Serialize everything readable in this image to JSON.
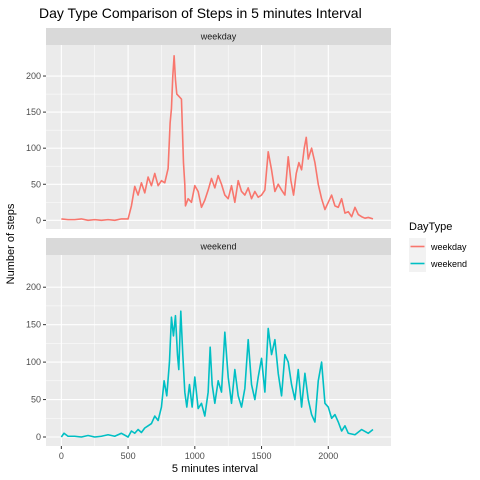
{
  "chart_data": {
    "type": "line",
    "title": "Day Type Comparison of Steps in 5 minutes Interval",
    "xlabel": "5 minutes interval",
    "ylabel": "Number of steps",
    "xlim": [
      -115,
      2470
    ],
    "ylim": [
      -12,
      243
    ],
    "x_ticks": [
      0,
      500,
      1000,
      1500,
      2000
    ],
    "y_ticks": [
      0,
      50,
      100,
      150,
      200
    ],
    "grid": true,
    "legend": {
      "title": "DayType",
      "position": "right"
    },
    "panels": [
      {
        "label": "weekday",
        "series": "weekday",
        "color": "#F8766D",
        "points": [
          [
            0,
            2
          ],
          [
            50,
            1
          ],
          [
            100,
            1
          ],
          [
            150,
            2
          ],
          [
            200,
            0
          ],
          [
            250,
            1
          ],
          [
            300,
            0
          ],
          [
            350,
            1
          ],
          [
            400,
            0
          ],
          [
            450,
            2
          ],
          [
            500,
            2
          ],
          [
            525,
            20
          ],
          [
            550,
            47
          ],
          [
            575,
            35
          ],
          [
            600,
            52
          ],
          [
            625,
            38
          ],
          [
            650,
            60
          ],
          [
            675,
            48
          ],
          [
            700,
            65
          ],
          [
            725,
            48
          ],
          [
            750,
            55
          ],
          [
            775,
            52
          ],
          [
            800,
            72
          ],
          [
            815,
            135
          ],
          [
            825,
            155
          ],
          [
            835,
            200
          ],
          [
            845,
            228
          ],
          [
            855,
            195
          ],
          [
            865,
            175
          ],
          [
            880,
            172
          ],
          [
            900,
            168
          ],
          [
            915,
            80
          ],
          [
            925,
            50
          ],
          [
            930,
            20
          ],
          [
            950,
            30
          ],
          [
            975,
            25
          ],
          [
            1000,
            48
          ],
          [
            1025,
            40
          ],
          [
            1050,
            18
          ],
          [
            1075,
            28
          ],
          [
            1100,
            42
          ],
          [
            1125,
            58
          ],
          [
            1150,
            45
          ],
          [
            1175,
            62
          ],
          [
            1200,
            50
          ],
          [
            1225,
            35
          ],
          [
            1250,
            30
          ],
          [
            1275,
            48
          ],
          [
            1300,
            25
          ],
          [
            1325,
            55
          ],
          [
            1350,
            40
          ],
          [
            1375,
            35
          ],
          [
            1400,
            45
          ],
          [
            1425,
            30
          ],
          [
            1450,
            40
          ],
          [
            1475,
            32
          ],
          [
            1500,
            35
          ],
          [
            1525,
            42
          ],
          [
            1550,
            95
          ],
          [
            1575,
            70
          ],
          [
            1600,
            40
          ],
          [
            1625,
            50
          ],
          [
            1650,
            42
          ],
          [
            1675,
            35
          ],
          [
            1700,
            88
          ],
          [
            1720,
            55
          ],
          [
            1740,
            35
          ],
          [
            1760,
            65
          ],
          [
            1780,
            80
          ],
          [
            1800,
            70
          ],
          [
            1820,
            100
          ],
          [
            1835,
            115
          ],
          [
            1850,
            85
          ],
          [
            1875,
            100
          ],
          [
            1900,
            80
          ],
          [
            1925,
            50
          ],
          [
            1950,
            30
          ],
          [
            1975,
            15
          ],
          [
            2000,
            25
          ],
          [
            2025,
            35
          ],
          [
            2050,
            20
          ],
          [
            2075,
            18
          ],
          [
            2100,
            30
          ],
          [
            2125,
            10
          ],
          [
            2150,
            12
          ],
          [
            2175,
            5
          ],
          [
            2200,
            18
          ],
          [
            2225,
            8
          ],
          [
            2250,
            5
          ],
          [
            2275,
            3
          ],
          [
            2300,
            4
          ],
          [
            2335,
            2
          ]
        ]
      },
      {
        "label": "weekend",
        "series": "weekend",
        "color": "#00BFC4",
        "points": [
          [
            0,
            0
          ],
          [
            20,
            5
          ],
          [
            50,
            1
          ],
          [
            100,
            1
          ],
          [
            150,
            0
          ],
          [
            200,
            2
          ],
          [
            250,
            0
          ],
          [
            300,
            1
          ],
          [
            350,
            3
          ],
          [
            400,
            1
          ],
          [
            450,
            5
          ],
          [
            500,
            0
          ],
          [
            525,
            8
          ],
          [
            550,
            5
          ],
          [
            575,
            10
          ],
          [
            600,
            6
          ],
          [
            625,
            12
          ],
          [
            650,
            15
          ],
          [
            675,
            18
          ],
          [
            700,
            28
          ],
          [
            725,
            22
          ],
          [
            750,
            40
          ],
          [
            770,
            75
          ],
          [
            790,
            55
          ],
          [
            810,
            100
          ],
          [
            825,
            160
          ],
          [
            840,
            135
          ],
          [
            855,
            162
          ],
          [
            870,
            110
          ],
          [
            880,
            90
          ],
          [
            895,
            168
          ],
          [
            910,
            110
          ],
          [
            925,
            60
          ],
          [
            940,
            40
          ],
          [
            960,
            70
          ],
          [
            980,
            40
          ],
          [
            1000,
            80
          ],
          [
            1025,
            38
          ],
          [
            1050,
            45
          ],
          [
            1075,
            28
          ],
          [
            1100,
            60
          ],
          [
            1115,
            120
          ],
          [
            1130,
            70
          ],
          [
            1150,
            45
          ],
          [
            1175,
            75
          ],
          [
            1200,
            60
          ],
          [
            1225,
            140
          ],
          [
            1250,
            80
          ],
          [
            1275,
            45
          ],
          [
            1300,
            90
          ],
          [
            1325,
            55
          ],
          [
            1350,
            40
          ],
          [
            1375,
            65
          ],
          [
            1400,
            130
          ],
          [
            1425,
            70
          ],
          [
            1450,
            50
          ],
          [
            1475,
            80
          ],
          [
            1500,
            105
          ],
          [
            1525,
            60
          ],
          [
            1550,
            145
          ],
          [
            1575,
            110
          ],
          [
            1600,
            130
          ],
          [
            1625,
            85
          ],
          [
            1650,
            55
          ],
          [
            1675,
            110
          ],
          [
            1700,
            100
          ],
          [
            1725,
            70
          ],
          [
            1750,
            50
          ],
          [
            1775,
            90
          ],
          [
            1800,
            40
          ],
          [
            1825,
            85
          ],
          [
            1850,
            50
          ],
          [
            1875,
            30
          ],
          [
            1900,
            20
          ],
          [
            1925,
            75
          ],
          [
            1950,
            100
          ],
          [
            1975,
            45
          ],
          [
            2000,
            40
          ],
          [
            2025,
            25
          ],
          [
            2050,
            30
          ],
          [
            2075,
            20
          ],
          [
            2100,
            8
          ],
          [
            2125,
            15
          ],
          [
            2150,
            5
          ],
          [
            2200,
            3
          ],
          [
            2250,
            10
          ],
          [
            2300,
            5
          ],
          [
            2335,
            10
          ]
        ]
      }
    ]
  }
}
